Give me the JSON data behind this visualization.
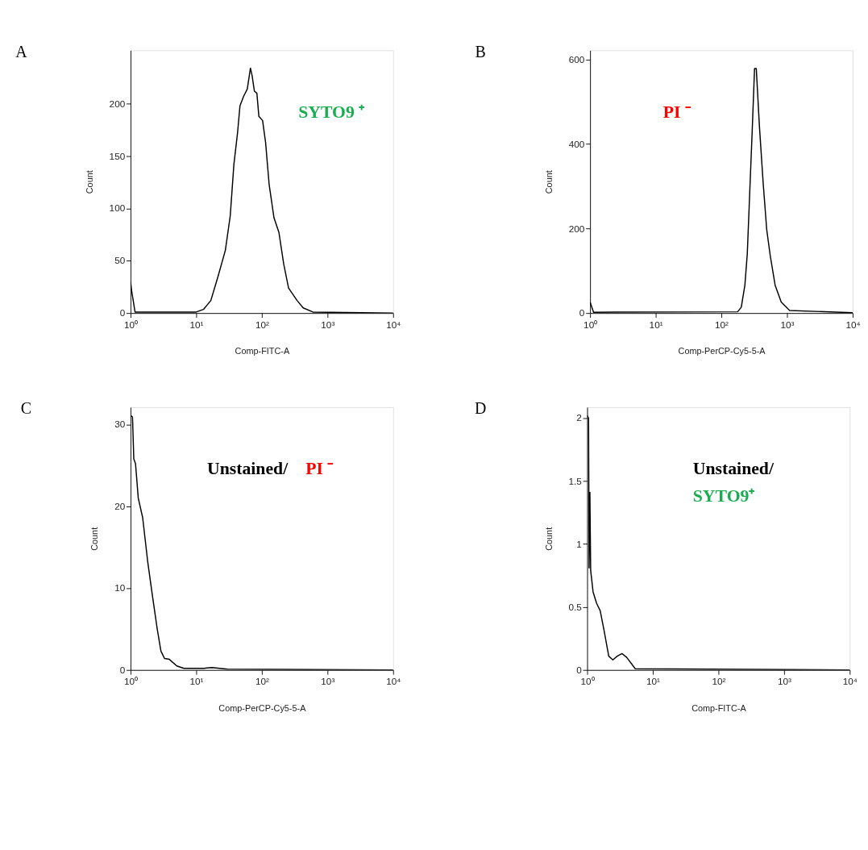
{
  "chart_data": [
    {
      "type": "line",
      "title": "A",
      "xlabel": "Comp-FITC-A",
      "ylabel": "Count",
      "log": "x",
      "grid": false,
      "marker": "none",
      "line_style": "solid",
      "xlim": [
        1,
        10000
      ],
      "xticks": [
        {
          "value": 1,
          "label": "10⁰"
        },
        {
          "value": 10,
          "label": "10¹"
        },
        {
          "value": 100,
          "label": "10²"
        },
        {
          "value": 1000,
          "label": "10³"
        },
        {
          "value": 10000,
          "label": "10⁴"
        }
      ],
      "ylim": [
        0,
        251
      ],
      "yticks": [
        0,
        50,
        100,
        150,
        200
      ],
      "annotations": [
        "SYTO9 ⁺"
      ],
      "series": [
        {
          "color": "#000000",
          "x": [
            1,
            1.04,
            1.17,
            10,
            12.9,
            16.7,
            21.5,
            27.8,
            33,
            37.5,
            42.6,
            46.4,
            52.7,
            60,
            67,
            71,
            77,
            84,
            90,
            102.6,
            114,
            129,
            153,
            182,
            215,
            255,
            344,
            426,
            600,
            10000
          ],
          "values": [
            30,
            21,
            1,
            1,
            3.5,
            12,
            35,
            60,
            93,
            142,
            172,
            198,
            207,
            214,
            234,
            227,
            212,
            210,
            188,
            184,
            163,
            123,
            91,
            77,
            47,
            24,
            12,
            5,
            1,
            0
          ]
        }
      ]
    },
    {
      "type": "line",
      "title": "B",
      "xlabel": "Comp-PerCP-Cy5-5-A",
      "ylabel": "Count",
      "log": "x",
      "grid": false,
      "marker": "none",
      "line_style": "solid",
      "xlim": [
        1,
        10000
      ],
      "xticks": [
        {
          "value": 1,
          "label": "10⁰"
        },
        {
          "value": 10,
          "label": "10¹"
        },
        {
          "value": 100,
          "label": "10²"
        },
        {
          "value": 1000,
          "label": "10³"
        },
        {
          "value": 10000,
          "label": "10⁴"
        }
      ],
      "ylim": [
        0,
        622
      ],
      "yticks": [
        0,
        200,
        400,
        600
      ],
      "annotations": [
        "PI ⁻"
      ],
      "series": [
        {
          "color": "#000000",
          "x": [
            1,
            1.13,
            177,
            201,
            228,
            248,
            270,
            294,
            320,
            340,
            379,
            431,
            490,
            556,
            659,
            815,
            1097,
            10000
          ],
          "values": [
            26,
            2,
            3,
            14,
            66,
            140,
            284,
            427,
            579,
            579,
            444,
            312,
            198,
            135,
            66,
            26,
            6,
            1
          ]
        }
      ]
    },
    {
      "type": "line",
      "title": "C",
      "xlabel": "Comp-PerCP-Cy5-5-A",
      "ylabel": "Count",
      "log": "x",
      "grid": false,
      "marker": "none",
      "line_style": "solid",
      "xlim": [
        1,
        10000
      ],
      "xticks": [
        {
          "value": 1,
          "label": "10⁰"
        },
        {
          "value": 10,
          "label": "10¹"
        },
        {
          "value": 100,
          "label": "10²"
        },
        {
          "value": 1000,
          "label": "10³"
        },
        {
          "value": 10000,
          "label": "10⁴"
        }
      ],
      "ylim": [
        0,
        32.1
      ],
      "yticks": [
        0,
        10,
        20,
        30
      ],
      "annotations": [
        "Unstained/",
        "PI ⁻"
      ],
      "series": [
        {
          "color": "#000000",
          "x": [
            1,
            1.07,
            1.12,
            1.19,
            1.31,
            1.53,
            1.82,
            2.15,
            2.55,
            2.9,
            3.3,
            3.9,
            5.05,
            6.5,
            12.9,
            17.4,
            30,
            10000
          ],
          "values": [
            31.1,
            30.9,
            25.8,
            25.2,
            21,
            18.6,
            13.3,
            9.1,
            5,
            2.3,
            1.4,
            1.3,
            0.5,
            0.2,
            0.2,
            0.3,
            0.1,
            0
          ]
        }
      ]
    },
    {
      "type": "line",
      "title": "D",
      "xlabel": "Comp-FITC-A",
      "ylabel": "Count",
      "log": "x",
      "grid": false,
      "marker": "none",
      "line_style": "solid",
      "xlim": [
        1,
        10000
      ],
      "xticks": [
        {
          "value": 1,
          "label": "10⁰"
        },
        {
          "value": 10,
          "label": "10¹"
        },
        {
          "value": 100,
          "label": "10²"
        },
        {
          "value": 1000,
          "label": "10³"
        },
        {
          "value": 10000,
          "label": "10⁴"
        }
      ],
      "ylim": [
        0,
        2.086
      ],
      "yticks": [
        0,
        0.5,
        1,
        1.5,
        2
      ],
      "annotations": [
        "Unstained/",
        "SYTO9⁺"
      ],
      "series": [
        {
          "color": "#000000",
          "x": [
            1,
            1.05,
            1.07,
            1.1,
            1.13,
            1.23,
            1.39,
            1.58,
            1.8,
            2.13,
            2.46,
            2.87,
            3.4,
            4.0,
            5.4,
            10000
          ],
          "values": [
            2.02,
            2.0,
            0.81,
            1.41,
            0.79,
            0.62,
            0.53,
            0.47,
            0.32,
            0.11,
            0.08,
            0.11,
            0.13,
            0.1,
            0.01,
            0
          ]
        }
      ]
    }
  ]
}
